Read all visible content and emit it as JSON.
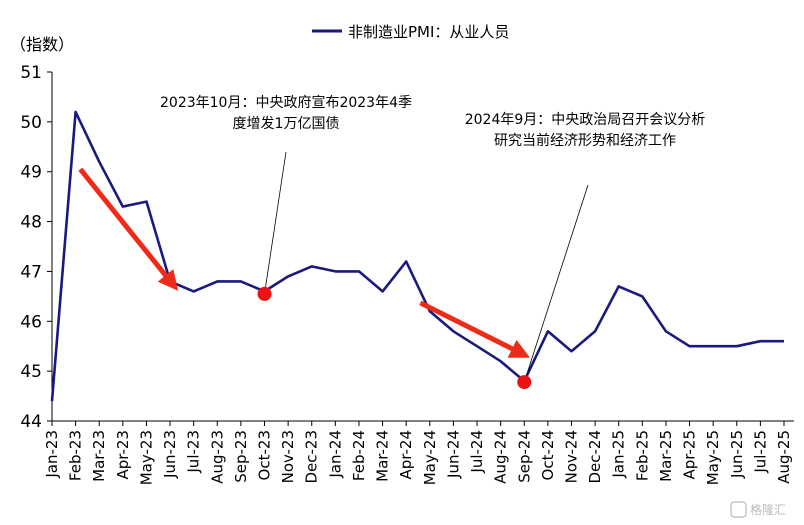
{
  "chart_data": {
    "type": "line",
    "unit_label": "（指数）",
    "legend": [
      {
        "name": "非制造业PMI：从业人员",
        "color": "#1a1a7e"
      }
    ],
    "categories": [
      "Jan-23",
      "Feb-23",
      "Mar-23",
      "Apr-23",
      "May-23",
      "Jun-23",
      "Jul-23",
      "Aug-23",
      "Sep-23",
      "Oct-23",
      "Nov-23",
      "Dec-23",
      "Jan-24",
      "Feb-24",
      "Mar-24",
      "Apr-24",
      "May-24",
      "Jun-24",
      "Jul-24",
      "Aug-24",
      "Sep-24",
      "Oct-24",
      "Nov-24",
      "Dec-24",
      "Jan-25",
      "Feb-25",
      "Mar-25",
      "Apr-25",
      "May-25",
      "Jun-25",
      "Jul-25",
      "Aug-25"
    ],
    "series": [
      {
        "name": "非制造业PMI：从业人员",
        "color": "#1a1a7e",
        "values": [
          44.4,
          50.2,
          49.2,
          48.3,
          48.4,
          46.8,
          46.6,
          46.8,
          46.8,
          46.6,
          46.9,
          47.1,
          47.0,
          47.0,
          46.6,
          47.2,
          46.2,
          45.8,
          45.5,
          45.2,
          44.8,
          45.8,
          45.4,
          45.8,
          46.7,
          46.5,
          45.8,
          45.5,
          45.5,
          45.5,
          45.6,
          45.6
        ]
      }
    ],
    "ylim": [
      44,
      51
    ],
    "yticks": [
      44,
      45,
      46,
      47,
      48,
      49,
      50,
      51
    ],
    "grid": false,
    "legend_position": "top-center",
    "annotations": [
      {
        "lines": [
          "2023年10月：中央政府宣布2023年4季",
          "度增发1万亿国债"
        ],
        "point_index": 9,
        "point_value": 46.55
      },
      {
        "lines": [
          "2024年9月：中央政治局召开会议分析",
          "研究当前经济形势和经济工作"
        ],
        "point_index": 20,
        "point_value": 44.78
      }
    ],
    "arrows": [
      {
        "from_index": 1.2,
        "from_value": 49.05,
        "to_index": 5.1,
        "to_value": 46.75
      },
      {
        "from_index": 15.6,
        "from_value": 46.37,
        "to_index": 19.9,
        "to_value": 45.35
      }
    ],
    "marker_color": "#ee1111",
    "arrow_color": "#ee2a1a"
  },
  "watermark": "格隆汇"
}
